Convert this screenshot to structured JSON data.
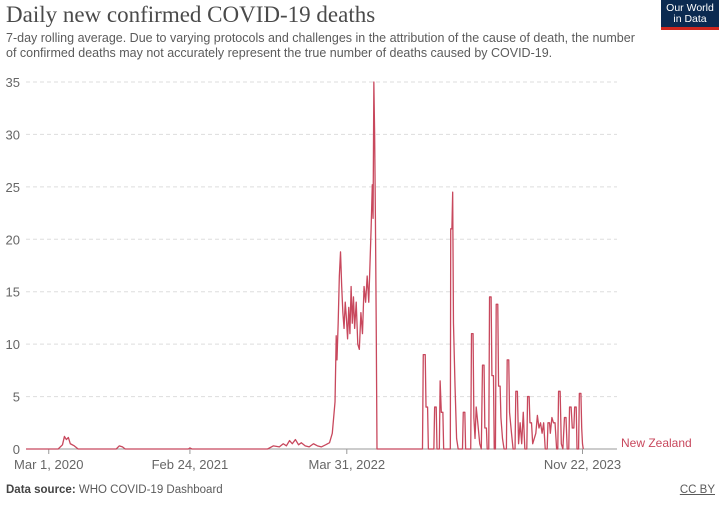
{
  "header": {
    "title": "Daily new confirmed COVID-19 deaths",
    "subtitle": "7-day rolling average. Due to varying protocols and challenges in the attribution of the cause of death, the number of confirmed deaths may not accurately represent the true number of deaths caused by COVID-19.",
    "logo_line1": "Our World",
    "logo_line2": "in Data"
  },
  "footer": {
    "source_label": "Data source:",
    "source_text": "WHO COVID-19 Dashboard",
    "license": "CC BY"
  },
  "colors": {
    "series": "#c8485d",
    "grid": "#dddddd",
    "logo_bg": "#0b2a51",
    "logo_accent": "#ce261e"
  },
  "chart_data": {
    "type": "line",
    "title": "Daily new confirmed COVID-19 deaths",
    "xlabel": "",
    "ylabel": "",
    "x_range": [
      "2020-01-03",
      "2024-02-18"
    ],
    "ylim": [
      0,
      35
    ],
    "y_ticks": [
      0,
      5,
      10,
      15,
      20,
      25,
      30,
      35
    ],
    "x_ticks": [
      {
        "date": "2020-03-01",
        "label": "Mar 1, 2020"
      },
      {
        "date": "2021-02-24",
        "label": "Feb 24, 2021"
      },
      {
        "date": "2022-03-31",
        "label": "Mar 31, 2022"
      },
      {
        "date": "2023-11-22",
        "label": "Nov 22, 2023"
      }
    ],
    "grid": "horizontal dashed",
    "series": [
      {
        "name": "New Zealand",
        "points": [
          [
            "2020-01-03",
            0
          ],
          [
            "2020-03-25",
            0
          ],
          [
            "2020-04-05",
            0.4
          ],
          [
            "2020-04-10",
            1.2
          ],
          [
            "2020-04-15",
            0.9
          ],
          [
            "2020-04-20",
            1.1
          ],
          [
            "2020-04-25",
            0.5
          ],
          [
            "2020-05-05",
            0.3
          ],
          [
            "2020-05-15",
            0
          ],
          [
            "2020-08-20",
            0
          ],
          [
            "2020-08-28",
            0.3
          ],
          [
            "2020-09-05",
            0.2
          ],
          [
            "2020-09-12",
            0
          ],
          [
            "2021-02-20",
            0
          ],
          [
            "2021-02-24",
            0.1
          ],
          [
            "2021-03-01",
            0
          ],
          [
            "2021-09-10",
            0
          ],
          [
            "2021-09-25",
            0.3
          ],
          [
            "2021-10-10",
            0.2
          ],
          [
            "2021-10-20",
            0.5
          ],
          [
            "2021-10-28",
            0.3
          ],
          [
            "2021-11-05",
            0.8
          ],
          [
            "2021-11-12",
            0.5
          ],
          [
            "2021-11-20",
            0.9
          ],
          [
            "2021-11-28",
            0.4
          ],
          [
            "2021-12-05",
            0.6
          ],
          [
            "2021-12-15",
            0.3
          ],
          [
            "2021-12-25",
            0.2
          ],
          [
            "2022-01-05",
            0.5
          ],
          [
            "2022-01-15",
            0.3
          ],
          [
            "2022-01-25",
            0.2
          ],
          [
            "2022-02-05",
            0.4
          ],
          [
            "2022-02-15",
            0.6
          ],
          [
            "2022-02-22",
            1.5
          ],
          [
            "2022-03-01",
            4.5
          ],
          [
            "2022-03-04",
            10.8
          ],
          [
            "2022-03-06",
            8.5
          ],
          [
            "2022-03-09",
            12
          ],
          [
            "2022-03-12",
            16.5
          ],
          [
            "2022-03-15",
            18.8
          ],
          [
            "2022-03-18",
            15.5
          ],
          [
            "2022-03-21",
            13
          ],
          [
            "2022-03-24",
            11.5
          ],
          [
            "2022-03-27",
            14
          ],
          [
            "2022-03-30",
            12.5
          ],
          [
            "2022-04-02",
            10.5
          ],
          [
            "2022-04-05",
            13.5
          ],
          [
            "2022-04-08",
            11
          ],
          [
            "2022-04-11",
            15.5
          ],
          [
            "2022-04-14",
            12
          ],
          [
            "2022-04-17",
            14.5
          ],
          [
            "2022-04-20",
            11.5
          ],
          [
            "2022-04-24",
            14
          ],
          [
            "2022-04-28",
            10
          ],
          [
            "2022-05-02",
            9.5
          ],
          [
            "2022-05-06",
            13
          ],
          [
            "2022-05-10",
            11
          ],
          [
            "2022-05-14",
            15.5
          ],
          [
            "2022-05-18",
            14
          ],
          [
            "2022-05-22",
            16.5
          ],
          [
            "2022-05-26",
            14
          ],
          [
            "2022-06-01",
            21
          ],
          [
            "2022-06-04",
            25.2
          ],
          [
            "2022-06-06",
            22
          ],
          [
            "2022-06-08",
            35
          ],
          [
            "2022-06-10",
            30
          ],
          [
            "2022-06-12",
            22
          ],
          [
            "2022-06-14",
            12
          ],
          [
            "2022-06-16",
            0
          ],
          [
            "2022-10-10",
            0
          ],
          [
            "2022-10-12",
            9
          ],
          [
            "2022-10-17",
            9
          ],
          [
            "2022-10-19",
            4
          ],
          [
            "2022-10-23",
            4
          ],
          [
            "2022-10-25",
            0
          ],
          [
            "2022-11-08",
            0
          ],
          [
            "2022-11-10",
            4
          ],
          [
            "2022-11-14",
            4
          ],
          [
            "2022-11-16",
            0
          ],
          [
            "2022-11-22",
            0
          ],
          [
            "2022-11-24",
            6.5
          ],
          [
            "2022-11-27",
            3.5
          ],
          [
            "2022-12-01",
            3.5
          ],
          [
            "2022-12-03",
            0
          ],
          [
            "2022-12-20",
            0
          ],
          [
            "2022-12-21",
            21
          ],
          [
            "2022-12-24",
            21
          ],
          [
            "2022-12-26",
            24.5
          ],
          [
            "2022-12-28",
            12
          ],
          [
            "2023-01-01",
            6
          ],
          [
            "2023-01-05",
            1
          ],
          [
            "2023-01-09",
            0
          ],
          [
            "2023-01-20",
            0
          ],
          [
            "2023-01-22",
            3.5
          ],
          [
            "2023-01-26",
            3.5
          ],
          [
            "2023-01-28",
            0
          ],
          [
            "2023-02-10",
            0
          ],
          [
            "2023-02-12",
            11
          ],
          [
            "2023-02-16",
            11
          ],
          [
            "2023-02-18",
            3
          ],
          [
            "2023-02-21",
            1
          ],
          [
            "2023-02-24",
            4
          ],
          [
            "2023-02-28",
            2.5
          ],
          [
            "2023-03-05",
            0.5
          ],
          [
            "2023-03-09",
            0
          ],
          [
            "2023-03-12",
            8
          ],
          [
            "2023-03-16",
            8
          ],
          [
            "2023-03-18",
            2
          ],
          [
            "2023-03-22",
            2
          ],
          [
            "2023-03-24",
            0
          ],
          [
            "2023-03-28",
            0
          ],
          [
            "2023-03-30",
            14.5
          ],
          [
            "2023-04-03",
            14.5
          ],
          [
            "2023-04-05",
            7
          ],
          [
            "2023-04-09",
            7
          ],
          [
            "2023-04-11",
            0
          ],
          [
            "2023-04-14",
            0
          ],
          [
            "2023-04-16",
            13.8
          ],
          [
            "2023-04-20",
            13.8
          ],
          [
            "2023-04-22",
            6
          ],
          [
            "2023-04-26",
            6
          ],
          [
            "2023-04-28",
            3
          ],
          [
            "2023-05-02",
            1
          ],
          [
            "2023-05-06",
            0
          ],
          [
            "2023-05-12",
            0
          ],
          [
            "2023-05-14",
            8.5
          ],
          [
            "2023-05-18",
            8.5
          ],
          [
            "2023-05-20",
            3.5
          ],
          [
            "2023-05-25",
            1.5
          ],
          [
            "2023-05-29",
            0
          ],
          [
            "2023-06-03",
            0
          ],
          [
            "2023-06-05",
            5.5
          ],
          [
            "2023-06-09",
            5.5
          ],
          [
            "2023-06-12",
            0.5
          ],
          [
            "2023-06-16",
            2.5
          ],
          [
            "2023-06-20",
            0.5
          ],
          [
            "2023-06-24",
            3.5
          ],
          [
            "2023-06-28",
            0
          ],
          [
            "2023-07-03",
            0
          ],
          [
            "2023-07-05",
            5
          ],
          [
            "2023-07-09",
            5
          ],
          [
            "2023-07-11",
            2.5
          ],
          [
            "2023-07-15",
            2.5
          ],
          [
            "2023-07-18",
            0.5
          ],
          [
            "2023-07-22",
            1
          ],
          [
            "2023-07-26",
            1.5
          ],
          [
            "2023-07-30",
            3.2
          ],
          [
            "2023-08-03",
            2
          ],
          [
            "2023-08-07",
            2.5
          ],
          [
            "2023-08-11",
            1.5
          ],
          [
            "2023-08-15",
            2.5
          ],
          [
            "2023-08-19",
            0
          ],
          [
            "2023-08-24",
            0
          ],
          [
            "2023-08-26",
            2.5
          ],
          [
            "2023-08-30",
            2.5
          ],
          [
            "2023-09-01",
            1.5
          ],
          [
            "2023-09-05",
            3
          ],
          [
            "2023-09-09",
            2.5
          ],
          [
            "2023-09-13",
            2.5
          ],
          [
            "2023-09-17",
            0
          ],
          [
            "2023-09-20",
            0
          ],
          [
            "2023-09-22",
            5.5
          ],
          [
            "2023-09-26",
            5.5
          ],
          [
            "2023-09-29",
            0.5
          ],
          [
            "2023-10-03",
            0
          ],
          [
            "2023-10-07",
            3
          ],
          [
            "2023-10-11",
            3
          ],
          [
            "2023-10-14",
            0
          ],
          [
            "2023-10-18",
            0
          ],
          [
            "2023-10-20",
            4
          ],
          [
            "2023-10-24",
            4
          ],
          [
            "2023-10-27",
            2
          ],
          [
            "2023-10-31",
            2
          ],
          [
            "2023-11-02",
            4
          ],
          [
            "2023-11-06",
            4
          ],
          [
            "2023-11-08",
            0
          ],
          [
            "2023-11-12",
            0
          ],
          [
            "2023-11-14",
            5.3
          ],
          [
            "2023-11-18",
            5.3
          ],
          [
            "2023-11-20",
            2
          ],
          [
            "2023-11-22",
            0.5
          ],
          [
            "2023-11-24",
            0
          ]
        ]
      }
    ]
  }
}
